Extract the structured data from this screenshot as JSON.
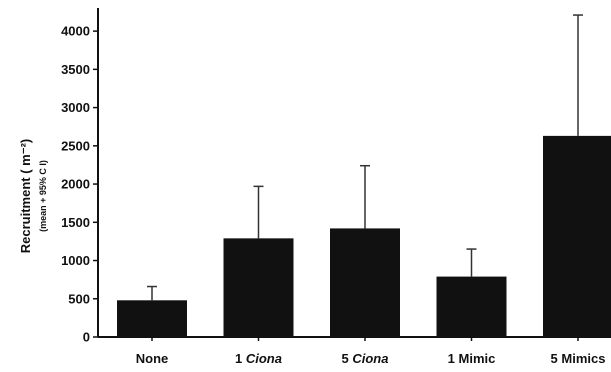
{
  "chart_data": {
    "type": "bar",
    "categories": [
      {
        "number": "",
        "text": "None",
        "italic": false
      },
      {
        "number": "1 ",
        "text": "Ciona",
        "italic": true
      },
      {
        "number": "5 ",
        "text": "Ciona",
        "italic": true
      },
      {
        "number": "",
        "text": "1 Mimic",
        "italic": false
      },
      {
        "number": "",
        "text": "5 Mimics",
        "italic": false
      }
    ],
    "values": [
      480,
      1290,
      1420,
      790,
      2630
    ],
    "error_upper": [
      660,
      1970,
      2240,
      1150,
      4210
    ],
    "ylim": [
      0,
      4250
    ],
    "yticks": [
      0,
      500,
      1000,
      1500,
      2000,
      2500,
      3000,
      3500,
      4000
    ],
    "ylabel": "Recruitment ( m⁻²)",
    "ylabel_sub": "(mean + 95% C I)",
    "xlabel": "",
    "grid": false,
    "colors": {
      "bar": "#111111",
      "axis": "#111111",
      "error_bar": "#333333"
    }
  }
}
